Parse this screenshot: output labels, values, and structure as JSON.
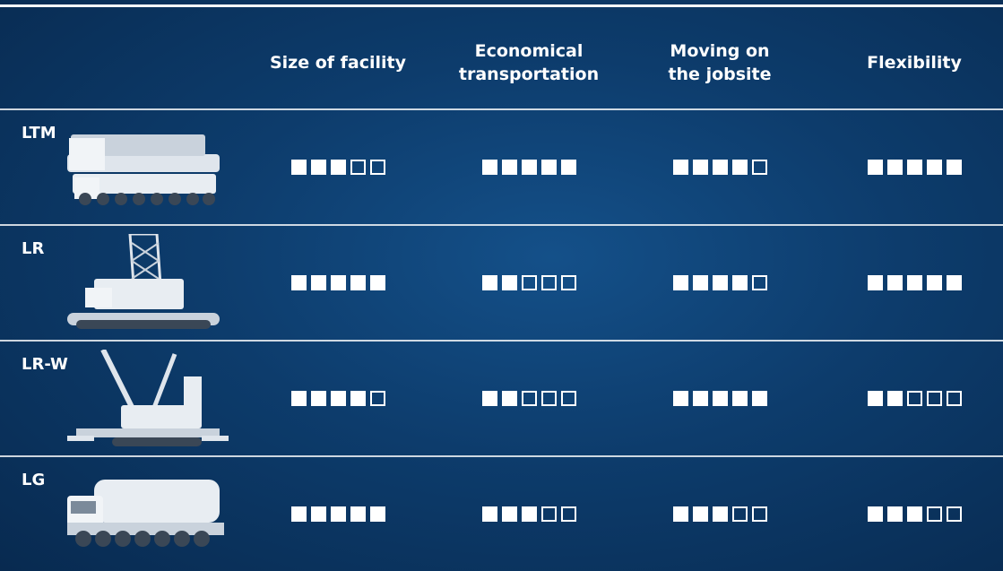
{
  "table": {
    "columns": [
      "Size of facility",
      "Economical transportation",
      "Moving on the jobsite",
      "Flexibility"
    ],
    "max_rating": 5,
    "rows": [
      {
        "label": "LTM",
        "ratings": [
          3,
          5,
          4,
          5
        ]
      },
      {
        "label": "LR",
        "ratings": [
          5,
          2,
          4,
          5
        ]
      },
      {
        "label": "LR-W",
        "ratings": [
          4,
          2,
          5,
          2
        ]
      },
      {
        "label": "LG",
        "ratings": [
          5,
          3,
          3,
          3
        ]
      }
    ]
  }
}
